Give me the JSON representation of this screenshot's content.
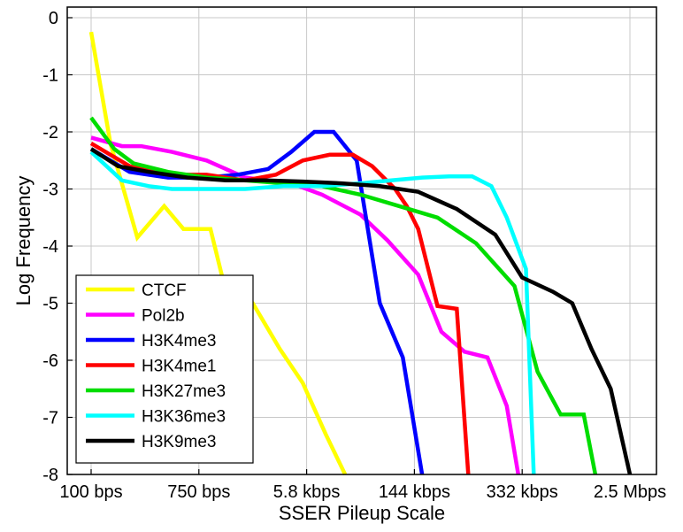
{
  "chart_data": {
    "type": "line",
    "title": "",
    "xlabel": "SSER Pileup Scale",
    "ylabel": "Log Frequency",
    "xlim": [
      0,
      14
    ],
    "ylim": [
      -8,
      0
    ],
    "grid": true,
    "legend_position": "bottom-left",
    "x_ticks": [
      {
        "value": 0,
        "label": "100 bps"
      },
      {
        "value": 2.8,
        "label": "750 bps"
      },
      {
        "value": 5.6,
        "label": "5.8 kbps"
      },
      {
        "value": 8.4,
        "label": "144 kbps"
      },
      {
        "value": 11.2,
        "label": "332 kbps"
      },
      {
        "value": 14,
        "label": "2.5 Mbps"
      }
    ],
    "y_ticks": [
      0,
      -1,
      -2,
      -3,
      -4,
      -5,
      -6,
      -7,
      -8
    ],
    "series": [
      {
        "name": "CTCF",
        "color": "#ffff00",
        "x": [
          0,
          0.5,
          1.2,
          1.9,
          2.4,
          3.1,
          3.5,
          4.2,
          4.9,
          5.5,
          6.1,
          6.6
        ],
        "y": [
          -0.25,
          -2.2,
          -3.85,
          -3.3,
          -3.7,
          -3.7,
          -4.8,
          -5.0,
          -5.8,
          -6.4,
          -7.3,
          -8.0
        ]
      },
      {
        "name": "Pol2b",
        "color": "#ff00ff",
        "x": [
          0,
          0.8,
          1.3,
          2.1,
          3.0,
          4.0,
          5.2,
          6.0,
          7.0,
          7.7,
          8.5,
          9.1,
          9.7,
          10.3,
          10.8,
          11.1
        ],
        "y": [
          -2.1,
          -2.25,
          -2.25,
          -2.35,
          -2.5,
          -2.8,
          -2.9,
          -3.1,
          -3.45,
          -3.9,
          -4.5,
          -5.5,
          -5.85,
          -5.95,
          -6.8,
          -8.0
        ]
      },
      {
        "name": "H3K4me3",
        "color": "#0000ff",
        "x": [
          0,
          1.0,
          2.0,
          3.0,
          3.8,
          4.6,
          5.2,
          5.8,
          6.3,
          6.9,
          7.5,
          8.1,
          8.6
        ],
        "y": [
          -2.3,
          -2.7,
          -2.8,
          -2.8,
          -2.75,
          -2.65,
          -2.35,
          -2.0,
          -2.0,
          -2.5,
          -5.0,
          -5.95,
          -8.0
        ]
      },
      {
        "name": "H3K4me1",
        "color": "#ff0000",
        "x": [
          0,
          1.0,
          2.0,
          3.0,
          4.0,
          4.8,
          5.5,
          6.2,
          6.8,
          7.3,
          7.9,
          8.2,
          8.5,
          9.0,
          9.5,
          9.8
        ],
        "y": [
          -2.2,
          -2.6,
          -2.75,
          -2.75,
          -2.85,
          -2.75,
          -2.5,
          -2.4,
          -2.4,
          -2.6,
          -3.0,
          -3.3,
          -3.7,
          -5.05,
          -5.1,
          -8.0
        ]
      },
      {
        "name": "H3K27me3",
        "color": "#00dd00",
        "x": [
          0,
          0.6,
          1.1,
          2.0,
          3.0,
          4.0,
          5.0,
          6.0,
          7.0,
          8.0,
          9.0,
          10.0,
          11.0,
          11.6,
          12.2,
          12.8,
          13.1
        ],
        "y": [
          -1.75,
          -2.3,
          -2.55,
          -2.7,
          -2.8,
          -2.85,
          -2.9,
          -2.95,
          -3.1,
          -3.3,
          -3.5,
          -3.95,
          -4.7,
          -6.2,
          -6.95,
          -6.95,
          -8.0
        ]
      },
      {
        "name": "H3K36me3",
        "color": "#00ffff",
        "x": [
          0,
          0.8,
          1.5,
          2.1,
          3.0,
          4.0,
          5.0,
          6.0,
          7.0,
          7.8,
          8.6,
          9.3,
          9.9,
          10.4,
          10.8,
          11.3,
          11.5
        ],
        "y": [
          -2.35,
          -2.85,
          -2.95,
          -3.0,
          -3.0,
          -3.0,
          -2.95,
          -2.95,
          -2.9,
          -2.85,
          -2.8,
          -2.78,
          -2.78,
          -2.95,
          -3.5,
          -4.4,
          -8.0
        ]
      },
      {
        "name": "H3K9me3",
        "color": "#000000",
        "x": [
          0,
          0.7,
          1.5,
          2.5,
          3.5,
          4.5,
          5.5,
          6.5,
          7.5,
          8.5,
          9.5,
          10.5,
          11.2,
          12.0,
          12.5,
          13.0,
          13.5,
          14.0
        ],
        "y": [
          -2.3,
          -2.6,
          -2.7,
          -2.8,
          -2.85,
          -2.85,
          -2.87,
          -2.9,
          -2.95,
          -3.05,
          -3.35,
          -3.8,
          -4.55,
          -4.8,
          -5.0,
          -5.8,
          -6.5,
          -8.0
        ]
      }
    ]
  }
}
